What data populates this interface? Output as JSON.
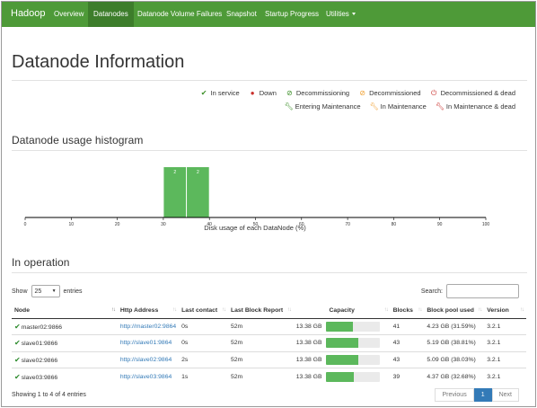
{
  "nav": {
    "brand": "Hadoop",
    "items": [
      "Overview",
      "Datanodes",
      "Datanode Volume Failures",
      "Snapshot",
      "Startup Progress",
      "Utilities"
    ],
    "active": "Datanodes"
  },
  "page_title": "Datanode Information",
  "legend": {
    "row1": [
      {
        "label": "In service",
        "icon": "check-icon",
        "color": "#3c8f28"
      },
      {
        "label": "Down",
        "icon": "error-circle-icon",
        "color": "#c9302c"
      },
      {
        "label": "Decommissioning",
        "icon": "ban-icon",
        "color": "#3c8f28"
      },
      {
        "label": "Decommissioned",
        "icon": "ban-icon",
        "color": "#f0a030"
      },
      {
        "label": "Decommissioned & dead",
        "icon": "power-icon",
        "color": "#c9302c"
      }
    ],
    "row2": [
      {
        "label": "Entering Maintenance",
        "icon": "wrench-icon",
        "color": "#3c8f28"
      },
      {
        "label": "In Maintenance",
        "icon": "wrench-icon",
        "color": "#f0a030"
      },
      {
        "label": "In Maintenance & dead",
        "icon": "wrench-icon",
        "color": "#c9302c"
      }
    ]
  },
  "histogram_title": "Datanode usage histogram",
  "chart_data": {
    "type": "bar",
    "xlabel": "Disk usage of each DataNode (%)",
    "xlim": [
      0,
      100
    ],
    "ticks": [
      "0",
      "10",
      "20",
      "30",
      "40",
      "50",
      "60",
      "70",
      "80",
      "90",
      "100"
    ],
    "bins": [
      {
        "x0": 30,
        "x1": 35,
        "value": 2
      },
      {
        "x0": 35,
        "x1": 40,
        "value": 2
      }
    ],
    "bar_color": "#5cb85c"
  },
  "in_operation_title": "In operation",
  "controls": {
    "show_label": "Show",
    "entries_value": "25",
    "entries_label": "entries",
    "search_label": "Search:"
  },
  "table": {
    "headers": [
      "Node",
      "Http Address",
      "Last contact",
      "Last Block Report",
      "Capacity",
      "Blocks",
      "Block pool used",
      "Version"
    ],
    "rows": [
      {
        "node": "master02:9866",
        "http": "http://master02:9864",
        "last_contact": "0s",
        "last_block_report": "52m",
        "capacity": "13.38 GB",
        "used_fraction": 0.5,
        "blocks": "41",
        "block_pool_used": "4.23 GB (31.59%)",
        "version": "3.2.1"
      },
      {
        "node": "slave01:9866",
        "http": "http://slave01:9864",
        "last_contact": "0s",
        "last_block_report": "52m",
        "capacity": "13.38 GB",
        "used_fraction": 0.6,
        "blocks": "43",
        "block_pool_used": "5.19 GB (38.81%)",
        "version": "3.2.1"
      },
      {
        "node": "slave02:9866",
        "http": "http://slave02:9864",
        "last_contact": "2s",
        "last_block_report": "52m",
        "capacity": "13.38 GB",
        "used_fraction": 0.6,
        "blocks": "43",
        "block_pool_used": "5.09 GB (38.03%)",
        "version": "3.2.1"
      },
      {
        "node": "slave03:9866",
        "http": "http://slave03:9864",
        "last_contact": "1s",
        "last_block_report": "52m",
        "capacity": "13.38 GB",
        "used_fraction": 0.52,
        "blocks": "39",
        "block_pool_used": "4.37 GB (32.68%)",
        "version": "3.2.1"
      }
    ]
  },
  "footer": {
    "info": "Showing 1 to 4 of 4 entries",
    "prev": "Previous",
    "page": "1",
    "next": "Next"
  }
}
